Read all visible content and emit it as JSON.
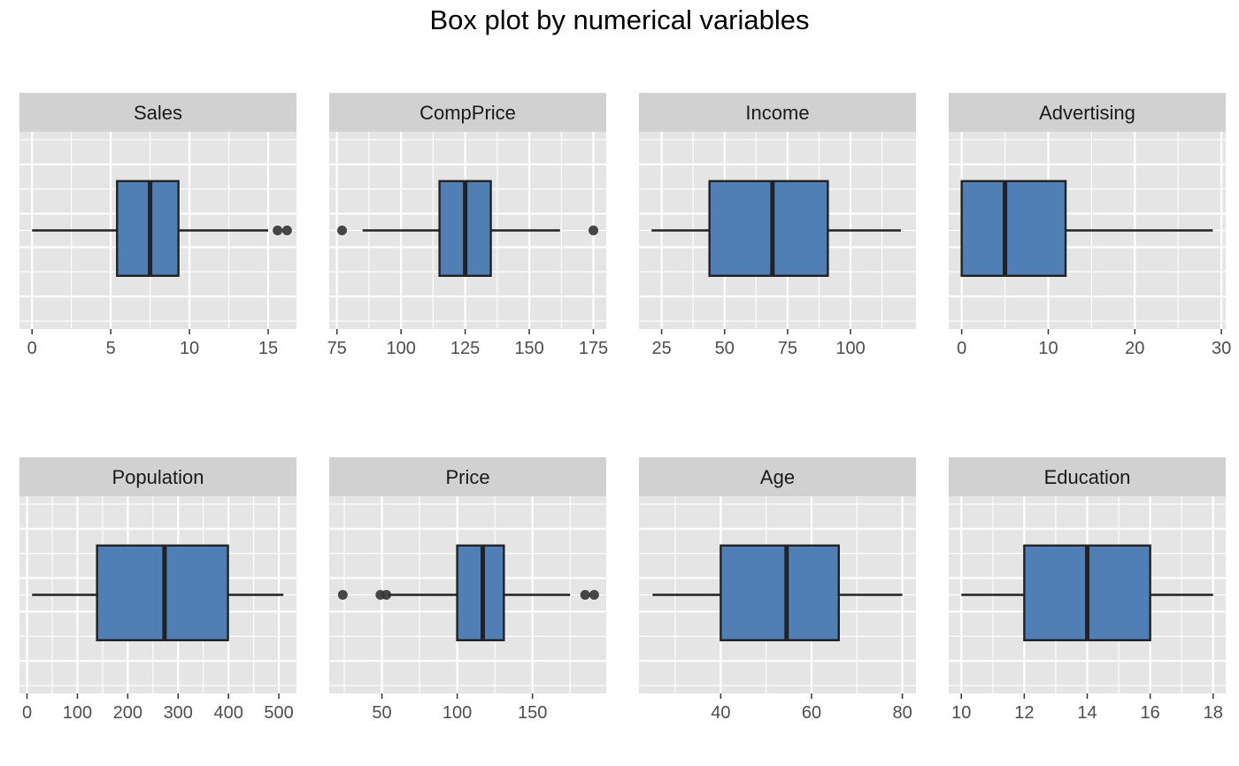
{
  "chart_data": {
    "type": "box",
    "title": "Box plot by numerical variables",
    "colors": {
      "box_fill": "#4f7fb4",
      "panel_bg": "#e5e5e5",
      "strip_bg": "#d1d1d1",
      "grid": "#ffffff",
      "line": "#222222",
      "outlier": "#333333"
    },
    "panels": [
      {
        "name": "Sales",
        "xlim": [
          -0.8,
          16.8
        ],
        "ticks": [
          0,
          5,
          10,
          15
        ],
        "tick_labels": [
          "0",
          "5",
          "10",
          "15"
        ],
        "min": 0,
        "q1": 5.4,
        "median": 7.5,
        "q3": 9.3,
        "max": 15.0,
        "outliers": [
          15.6,
          16.2
        ]
      },
      {
        "name": "CompPrice",
        "xlim": [
          72,
          180
        ],
        "ticks": [
          75,
          100,
          125,
          150,
          175
        ],
        "tick_labels": [
          "75",
          "100",
          "125",
          "150",
          "175"
        ],
        "min": 85,
        "q1": 115,
        "median": 125,
        "q3": 135,
        "max": 162,
        "outliers": [
          77,
          175
        ]
      },
      {
        "name": "Income",
        "xlim": [
          16,
          126
        ],
        "ticks": [
          25,
          50,
          75,
          100
        ],
        "tick_labels": [
          "25",
          "50",
          "75",
          "100"
        ],
        "min": 21,
        "q1": 44,
        "median": 69,
        "q3": 91,
        "max": 120,
        "outliers": []
      },
      {
        "name": "Advertising",
        "xlim": [
          -1.5,
          30.5
        ],
        "ticks": [
          0,
          10,
          20,
          30
        ],
        "tick_labels": [
          "0",
          "10",
          "20",
          "30"
        ],
        "min": 0,
        "q1": 0,
        "median": 5,
        "q3": 12,
        "max": 29,
        "outliers": []
      },
      {
        "name": "Population",
        "xlim": [
          -15,
          535
        ],
        "ticks": [
          0,
          100,
          200,
          300,
          400,
          500
        ],
        "tick_labels": [
          "0",
          "100",
          "200",
          "300",
          "400",
          "500"
        ],
        "min": 10,
        "q1": 139,
        "median": 273,
        "q3": 399,
        "max": 509,
        "outliers": []
      },
      {
        "name": "Price",
        "xlim": [
          15,
          199
        ],
        "ticks": [
          50,
          100,
          150
        ],
        "tick_labels": [
          "50",
          "100",
          "150"
        ],
        "min": 54,
        "q1": 100,
        "median": 117,
        "q3": 131,
        "max": 175,
        "outliers": [
          24,
          49,
          53,
          185,
          191
        ]
      },
      {
        "name": "Age",
        "xlim": [
          22,
          83
        ],
        "ticks": [
          40,
          60,
          80
        ],
        "tick_labels": [
          "40",
          "60",
          "80"
        ],
        "min": 25,
        "q1": 40,
        "median": 54.5,
        "q3": 66,
        "max": 80,
        "outliers": []
      },
      {
        "name": "Education",
        "xlim": [
          9.6,
          18.4
        ],
        "ticks": [
          10,
          12,
          14,
          16,
          18
        ],
        "tick_labels": [
          "10",
          "12",
          "14",
          "16",
          "18"
        ],
        "min": 10,
        "q1": 12,
        "median": 14,
        "q3": 16,
        "max": 18,
        "outliers": []
      }
    ]
  }
}
